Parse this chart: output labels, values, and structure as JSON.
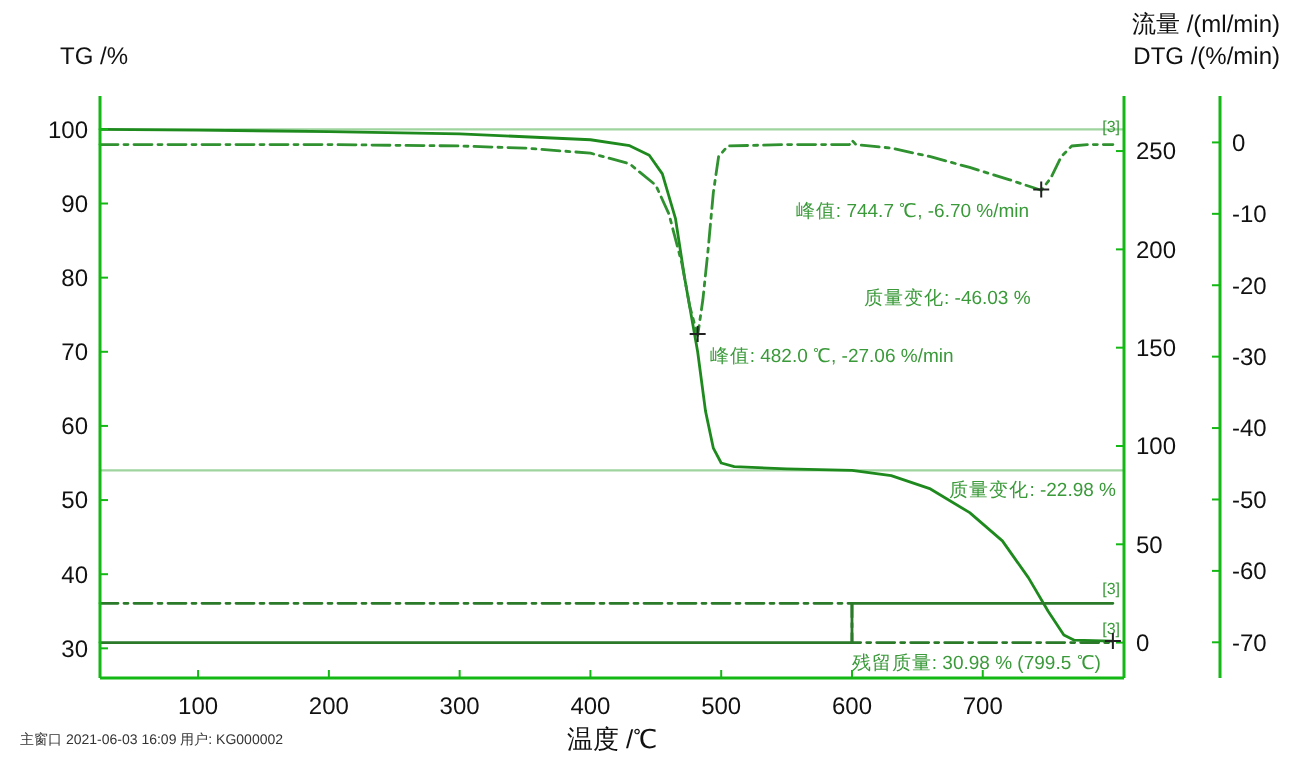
{
  "chart_data": {
    "type": "line",
    "xlabel": "温度 /℃",
    "ylabel": "TG /%",
    "y2label": "流量 /(ml/min)",
    "y3label": "DTG /(%/min)",
    "xlim": [
      25,
      808
    ],
    "xticks": [
      100,
      200,
      300,
      400,
      500,
      600,
      700
    ],
    "ylim": [
      26,
      104.5
    ],
    "yticks": [
      30,
      40,
      50,
      60,
      70,
      80,
      90,
      100
    ],
    "y2lim": [
      -18,
      278
    ],
    "y2ticks": [
      0,
      50,
      100,
      150,
      200,
      250
    ],
    "y3lim": [
      -75,
      6.5
    ],
    "y3ticks": [
      -70,
      -60,
      -50,
      -40,
      -30,
      -20,
      -10,
      0
    ],
    "grid": false,
    "marker": "none",
    "series": [
      {
        "color": "#1e8a1e",
        "line_style": "solid",
        "x": [
          25,
          100,
          200,
          300,
          400,
          430,
          445,
          455,
          465,
          472,
          482,
          488,
          494,
          500,
          510,
          550,
          600,
          630,
          660,
          690,
          715,
          735,
          750,
          762,
          770,
          799.5
        ],
        "values": [
          100,
          99.9,
          99.7,
          99.4,
          98.6,
          97.8,
          96.5,
          94,
          88,
          80,
          70,
          62,
          57,
          55,
          54.5,
          54.2,
          54,
          53.3,
          51.5,
          48.3,
          44.5,
          39.5,
          35,
          31.8,
          31.1,
          30.98
        ]
      },
      {
        "color": "#2f912f",
        "line_style": "dashed",
        "axis": "y3",
        "x": [
          25,
          100,
          200,
          300,
          350,
          400,
          430,
          450,
          460,
          470,
          476,
          482,
          486,
          490,
          494,
          498,
          505,
          550,
          598,
          600,
          603,
          630,
          660,
          690,
          720,
          744.7,
          752,
          760,
          768,
          780,
          799.5
        ],
        "values": [
          -0.3,
          -0.3,
          -0.3,
          -0.5,
          -0.8,
          -1.5,
          -3,
          -6,
          -10,
          -17,
          -23,
          -27.06,
          -22,
          -15,
          -7,
          -2,
          -0.5,
          -0.3,
          -0.3,
          0.3,
          -0.3,
          -0.8,
          -2,
          -3.5,
          -5.2,
          -6.7,
          -5,
          -2,
          -0.5,
          -0.3,
          -0.3
        ]
      },
      {
        "color": "#2a7a2a",
        "line_style": "dashed",
        "axis": "y2",
        "x": [
          25,
          600,
          600,
          799.5
        ],
        "values": [
          20,
          20,
          0,
          0
        ]
      },
      {
        "color": "#2a7a2a",
        "line_style": "solid",
        "axis": "y2",
        "x": [
          25,
          600,
          600,
          799.5
        ],
        "values": [
          0,
          0,
          20,
          20
        ]
      }
    ],
    "ref_lines": [
      {
        "axis": "y",
        "value": 100,
        "color": "#9fd49f"
      },
      {
        "axis": "y",
        "value": 54,
        "color": "#9fd49f"
      }
    ],
    "annotations": [
      {
        "text": "峰值: 482.0 ℃, -27.06 %/min",
        "x": 482,
        "y": 72.4
      },
      {
        "text": "峰值: 744.7 ℃, -6.70 %/min",
        "x": 744.7,
        "y": 91.9
      },
      {
        "text": "残留质量: 30.98 % (799.5 ℃)",
        "x": 799.5,
        "y": 30.98
      },
      "质量变化: -46.03 %",
      "质量变化: -22.98 %",
      "[3]",
      "[3]",
      "[3]",
      "主窗口    2021-06-03 16:09    用户: KG000002"
    ]
  }
}
